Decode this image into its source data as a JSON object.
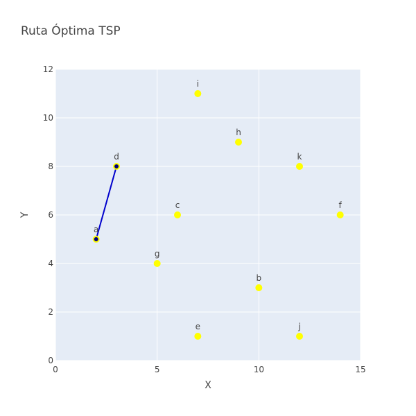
{
  "chart_data": {
    "type": "scatter",
    "title": "Ruta Óptima TSP",
    "xlabel": "X",
    "ylabel": "Y",
    "xlim": [
      0,
      15
    ],
    "ylim": [
      0,
      12
    ],
    "x_ticks": [
      0,
      5,
      10,
      15
    ],
    "y_ticks": [
      0,
      2,
      4,
      6,
      8,
      10,
      12
    ],
    "grid": true,
    "legend": "none",
    "colors": {
      "plot_background": "#e5ecf6",
      "grid": "#ffffff",
      "point": "#ffff00",
      "route": "#0000cc",
      "route_marker": "#000080"
    },
    "points": [
      {
        "label": "a",
        "x": 2,
        "y": 5
      },
      {
        "label": "b",
        "x": 10,
        "y": 3
      },
      {
        "label": "c",
        "x": 6,
        "y": 6
      },
      {
        "label": "d",
        "x": 3,
        "y": 8
      },
      {
        "label": "e",
        "x": 7,
        "y": 1
      },
      {
        "label": "f",
        "x": 14,
        "y": 6
      },
      {
        "label": "g",
        "x": 5,
        "y": 4
      },
      {
        "label": "h",
        "x": 9,
        "y": 9
      },
      {
        "label": "i",
        "x": 7,
        "y": 11
      },
      {
        "label": "j",
        "x": 12,
        "y": 1
      },
      {
        "label": "k",
        "x": 12,
        "y": 8
      }
    ],
    "route": [
      {
        "x": 2,
        "y": 5
      },
      {
        "x": 3,
        "y": 8
      }
    ]
  }
}
